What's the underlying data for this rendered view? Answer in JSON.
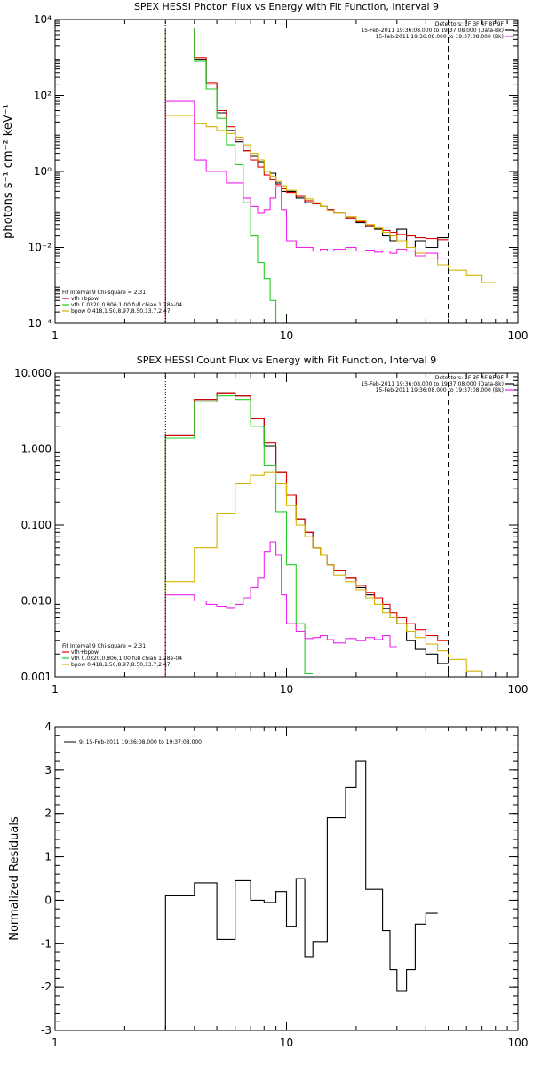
{
  "colors": {
    "data": "#000000",
    "total_fit": "#dd0000",
    "vth": "#22cc22",
    "bpow": "#dddd22",
    "bpow_line": "#d4b400",
    "background": "#cc00cc",
    "background_line": "#ee22ee"
  },
  "energy_bins": [
    3.0,
    3.5,
    4.0,
    4.5,
    5.0,
    5.5,
    6.0,
    6.5,
    7.0,
    7.5,
    8.0,
    8.5,
    9.0,
    9.5,
    10.0,
    11.0,
    12.0,
    13.0,
    14.0,
    15.0,
    16.0,
    18.0,
    20.0,
    22.0,
    24.0,
    26.0,
    28.0,
    30.0,
    33.0,
    36.0,
    40.0,
    45.0,
    50.0,
    60.0,
    70.0,
    80.0,
    100.0
  ],
  "chart_data": [
    {
      "type": "line",
      "title": "SPEX HESSI Photon Flux vs Energy with Fit Function, Interval 9",
      "ylabel": "photons s⁻¹ cm⁻² keV⁻¹",
      "xlabel": "",
      "xscale": "log",
      "yscale": "log",
      "xlim": [
        1,
        100
      ],
      "ylim": [
        0.0001,
        10000
      ],
      "xticks": [
        "1",
        "10",
        "100"
      ],
      "yticks": [
        "10⁻⁴",
        "10⁻²",
        "10⁰",
        "10²",
        "10⁴"
      ],
      "vlines": [
        3,
        50
      ],
      "legend_top": [
        "Detectors: 1F 3F 4F 8F 9F",
        "15-Feb-2011 19:36:08.000 to 19:37:08.000 (Data-Bk)",
        "15-Feb-2011 19:36:08.000 to 19:37:08.000 (Bk)"
      ],
      "legend_bottom": [
        "Fit Interval 9   Chi-square = 2.31",
        "vth+bpow",
        "vth 0.0320,0.806,1.00  full chian 1.28e-04",
        "bpow 0.418,1.50,8.97,8.50,13.7,2.47"
      ],
      "series": [
        {
          "name": "15-Feb-2011 19:36:08.000 to 19:37:08.000 (Data-Bk)",
          "color": "#000000",
          "from": 3,
          "to": 50,
          "values": [
            6000,
            6000,
            900,
            200,
            35,
            12,
            6,
            3.5,
            2.5,
            1.8,
            1.0,
            0.9,
            0.5,
            0.3,
            0.3,
            0.2,
            0.15,
            0.14,
            0.12,
            0.1,
            0.08,
            0.06,
            0.045,
            0.035,
            0.03,
            0.02,
            0.015,
            0.03,
            0.01,
            0.015,
            0.01,
            0.018
          ]
        },
        {
          "name": "vth+bpow",
          "color": "#dd0000",
          "from": 3,
          "to": 50,
          "values": [
            6000,
            6000,
            1000,
            220,
            40,
            15,
            7,
            3.5,
            2.0,
            1.3,
            0.8,
            0.6,
            0.45,
            0.35,
            0.28,
            0.22,
            0.17,
            0.14,
            0.12,
            0.1,
            0.08,
            0.06,
            0.048,
            0.038,
            0.032,
            0.028,
            0.025,
            0.022,
            0.02,
            0.018,
            0.017,
            0.016
          ]
        },
        {
          "name": "vth 0.0320,0.806,1.00  full chian 1.28e-04",
          "color": "#22cc22",
          "from": 3,
          "to": 17,
          "values": [
            6000,
            6000,
            800,
            150,
            25,
            5,
            1.5,
            0.15,
            0.02,
            0.004,
            0.0015,
            0.0004,
            0.0001
          ]
        },
        {
          "name": "bpow 0.418,1.50,8.97,8.50,13.7,2.47",
          "color": "#d4b400",
          "from": 3,
          "to": 100,
          "values": [
            30,
            30,
            18,
            15,
            12,
            10,
            8,
            5,
            3,
            2,
            1.0,
            0.75,
            0.55,
            0.42,
            0.32,
            0.24,
            0.19,
            0.15,
            0.12,
            0.095,
            0.08,
            0.065,
            0.05,
            0.04,
            0.032,
            0.025,
            0.02,
            0.015,
            0.01,
            0.007,
            0.005,
            0.0035,
            0.0025,
            0.0018,
            0.0012
          ]
        },
        {
          "name": "15-Feb-2011 19:36:08.000 to 19:37:08.000 (Bk)",
          "color": "#ee22ee",
          "from": 3,
          "to": 50,
          "values": [
            70,
            70,
            2.0,
            1.0,
            1.0,
            0.5,
            0.5,
            0.2,
            0.12,
            0.08,
            0.1,
            0.2,
            0.4,
            0.1,
            0.015,
            0.01,
            0.01,
            0.008,
            0.009,
            0.008,
            0.009,
            0.01,
            0.008,
            0.0085,
            0.0075,
            0.008,
            0.007,
            0.009,
            0.008,
            0.006,
            0.007,
            0.005
          ]
        }
      ]
    },
    {
      "type": "line",
      "title": "SPEX HESSI Count Flux vs Energy with Fit Function, Interval 9",
      "ylabel": "",
      "xlabel": "",
      "xscale": "log",
      "yscale": "log",
      "xlim": [
        1,
        100
      ],
      "ylim": [
        0.001,
        10
      ],
      "xticks": [
        "1",
        "10",
        "100"
      ],
      "yticks": [
        "0.001",
        "0.010",
        "0.100",
        "1.000",
        "10.000"
      ],
      "vlines": [
        3,
        50
      ],
      "legend_top": [
        "Detectors: 1F 3F 4F 8F 9F",
        "15-Feb-2011 19:36:08.000 to 19:37:08.000 (Data-Bk)",
        "15-Feb-2011 19:36:08.000 to 19:37:08.000 (Bk)"
      ],
      "legend_bottom": [
        "Fit Interval 9   Chi-square = 2.31",
        "vth+bpow",
        "vth 0.0320,0.806,1.00  full chian 1.28e-04",
        "bpow 0.418,1.50,8.97,8.50,13.7,2.47"
      ],
      "series": [
        {
          "name": "15-Feb-2011 19:36:08.000 to 19:37:08.000 (Data-Bk)",
          "color": "#000000",
          "from": 3,
          "to": 50,
          "values": [
            1.5,
            1.5,
            4.5,
            4.5,
            5.5,
            5.5,
            5.0,
            5.0,
            2.5,
            2.5,
            1.1,
            1.1,
            0.5,
            0.5,
            0.25,
            0.12,
            0.08,
            0.05,
            0.04,
            0.03,
            0.025,
            0.02,
            0.015,
            0.012,
            0.01,
            0.008,
            0.006,
            0.005,
            0.003,
            0.0023,
            0.002,
            0.0015
          ]
        },
        {
          "name": "vth+bpow",
          "color": "#dd0000",
          "from": 3,
          "to": 50,
          "values": [
            1.5,
            1.5,
            4.5,
            4.5,
            5.5,
            5.5,
            5.0,
            5.0,
            2.5,
            2.5,
            1.2,
            1.2,
            0.5,
            0.5,
            0.25,
            0.12,
            0.08,
            0.05,
            0.04,
            0.03,
            0.025,
            0.02,
            0.016,
            0.013,
            0.011,
            0.009,
            0.007,
            0.006,
            0.005,
            0.0042,
            0.0035,
            0.003
          ]
        },
        {
          "name": "vth 0.0320,0.806,1.00  full chian 1.28e-04",
          "color": "#22cc22",
          "from": 3,
          "to": 13,
          "values": [
            1.4,
            1.4,
            4.2,
            4.2,
            5.0,
            5.0,
            4.5,
            4.5,
            2.0,
            2.0,
            0.6,
            0.6,
            0.15,
            0.15,
            0.03,
            0.005,
            0.0011
          ]
        },
        {
          "name": "bpow 0.418,1.50,8.97,8.50,13.7,2.47",
          "color": "#d4b400",
          "from": 3,
          "to": 70,
          "values": [
            0.018,
            0.018,
            0.05,
            0.05,
            0.14,
            0.14,
            0.35,
            0.35,
            0.45,
            0.45,
            0.5,
            0.5,
            0.35,
            0.35,
            0.18,
            0.1,
            0.07,
            0.05,
            0.04,
            0.03,
            0.022,
            0.018,
            0.014,
            0.011,
            0.009,
            0.007,
            0.006,
            0.005,
            0.004,
            0.0033,
            0.0027,
            0.0022,
            0.0017,
            0.0012,
            0.001
          ]
        },
        {
          "name": "15-Feb-2011 19:36:08.000 to 19:37:08.000 (Bk)",
          "color": "#ee22ee",
          "from": 3,
          "to": 50,
          "values": [
            0.012,
            0.012,
            0.01,
            0.009,
            0.0085,
            0.0082,
            0.009,
            0.011,
            0.015,
            0.02,
            0.045,
            0.06,
            0.04,
            0.012,
            0.005,
            0.004,
            0.0032,
            0.0033,
            0.0035,
            0.0031,
            0.0028,
            0.0032,
            0.003,
            0.0033,
            0.0031,
            0.0035,
            0.0025
          ]
        }
      ]
    },
    {
      "type": "line",
      "title": "",
      "ylabel": "Normalized Residuals",
      "xlabel": "",
      "xscale": "log",
      "yscale": "linear",
      "xlim": [
        1,
        100
      ],
      "ylim": [
        -3,
        4
      ],
      "xticks": [
        "1",
        "10",
        "100"
      ],
      "yticks": [
        "-3",
        "-2",
        "-1",
        "0",
        "1",
        "2",
        "3",
        "4"
      ],
      "legend_top": [
        "9: 15-Feb-2011 19:36:08.000 to 19:37:08.000"
      ],
      "series": [
        {
          "name": "9: 15-Feb-2011 19:36:08.000 to 19:37:08.000",
          "color": "#000000",
          "from": 3,
          "to": 50,
          "values": [
            0.1,
            0.1,
            0.4,
            0.4,
            -0.9,
            -0.9,
            0.45,
            0.45,
            0.0,
            0.0,
            -0.05,
            -0.05,
            0.2,
            0.2,
            -0.6,
            0.5,
            -1.3,
            -0.95,
            -0.95,
            1.9,
            1.9,
            2.6,
            3.2,
            0.25,
            0.25,
            -0.7,
            -1.6,
            -2.1,
            -1.6,
            -0.55,
            -0.3
          ]
        }
      ]
    }
  ]
}
